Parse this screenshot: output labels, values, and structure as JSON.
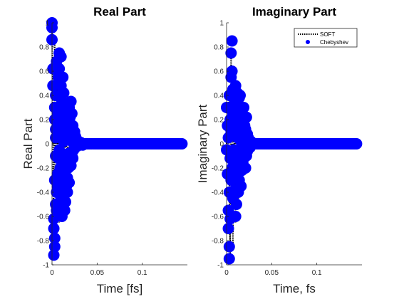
{
  "chart_data": [
    {
      "type": "scatter",
      "title": "Real Part",
      "xlabel": "Time [fs]",
      "ylabel": "Real Part",
      "xlim": [
        0,
        0.15
      ],
      "ylim": [
        -1,
        1
      ],
      "xticks": [
        0,
        0.05,
        0.1
      ],
      "yticks": [
        -1,
        -0.8,
        -0.6,
        -0.4,
        -0.2,
        0,
        0.2,
        0.4,
        0.6,
        0.8,
        1
      ],
      "xtick_labels": [
        "0",
        "0.05",
        "0.1"
      ],
      "ytick_labels": [
        "-1",
        "-0.8",
        "-0.6",
        "-0.4",
        "-0.2",
        "0",
        "0.2",
        "0.4",
        "0.6",
        "0.8",
        "1"
      ],
      "grid": false,
      "series": [
        {
          "name": "SOFT",
          "style": "dotted-line",
          "color": "#000000",
          "x": [
            0,
            0.002,
            0.003,
            0.005,
            0.006,
            0.008,
            0.009,
            0.011,
            0.012,
            0.014,
            0.015,
            0.017,
            0.018,
            0.02,
            0.022,
            0.024,
            0.026,
            0.028,
            0.03,
            0.035,
            0.04,
            0.05,
            0.07,
            0.1,
            0.145
          ],
          "y": [
            1,
            -0.93,
            0.85,
            -0.88,
            0.55,
            -0.65,
            0.75,
            -0.5,
            0.45,
            -0.45,
            0.3,
            -0.3,
            0.3,
            -0.15,
            0.2,
            -0.08,
            0.08,
            -0.03,
            0.02,
            0,
            0,
            0,
            0,
            0,
            0
          ]
        },
        {
          "name": "Chebyshev",
          "style": "marker",
          "color": "#0000FF",
          "x": [
            0,
            0,
            0,
            0.001,
            0.001,
            0.002,
            0.002,
            0.002,
            0.003,
            0.003,
            0.003,
            0.003,
            0.003,
            0.004,
            0.004,
            0.004,
            0.004,
            0.004,
            0.005,
            0.005,
            0.005,
            0.006,
            0.006,
            0.006,
            0.006,
            0.007,
            0.007,
            0.007,
            0.008,
            0.008,
            0.008,
            0.008,
            0.009,
            0.009,
            0.01,
            0.01,
            0.01,
            0.01,
            0.011,
            0.011,
            0.012,
            0.012,
            0.012,
            0.012,
            0.013,
            0.013,
            0.013,
            0.013,
            0.013,
            0.014,
            0.014,
            0.014,
            0.014,
            0.015,
            0.015,
            0.015,
            0.015,
            0.015,
            0.016,
            0.016,
            0.016,
            0.016,
            0.017,
            0.017,
            0.017,
            0.017,
            0.018,
            0.018,
            0.018,
            0.018,
            0.019,
            0.019,
            0.019,
            0.019,
            0.02,
            0.02,
            0.02,
            0.021,
            0.021,
            0.021,
            0.022,
            0.022,
            0.022,
            0.023,
            0.023,
            0.024,
            0.024,
            0.025,
            0.025,
            0.026,
            0.026,
            0.027,
            0.028,
            0.029,
            0.03,
            0.032,
            0.034,
            0.036,
            0.038,
            0.04,
            0.042,
            0.044,
            0.046,
            0.048,
            0.05,
            0.052,
            0.054,
            0.056,
            0.058,
            0.06,
            0.062,
            0.064,
            0.066,
            0.068,
            0.07,
            0.072,
            0.074,
            0.076,
            0.078,
            0.08,
            0.082,
            0.084,
            0.086,
            0.088,
            0.09,
            0.092,
            0.094,
            0.096,
            0.098,
            0.1,
            0.102,
            0.104,
            0.106,
            0.108,
            0.11,
            0.112,
            0.114,
            0.116,
            0.118,
            0.12,
            0.122,
            0.124,
            0.126,
            0.128,
            0.13,
            0.132,
            0.134,
            0.136,
            0.138,
            0.14,
            0.142,
            0.144
          ],
          "y": [
            1,
            0.96,
            0.86,
            0.62,
            0.48,
            -0.62,
            -0.7,
            -0.92,
            0.3,
            0.2,
            -0.78,
            -0.85,
            -0.3,
            0.05,
            0.4,
            -0.5,
            -0.1,
            0.12,
            0.68,
            -0.4,
            -0.55,
            0.25,
            0.1,
            -0.25,
            -0.35,
            0.55,
            0.15,
            -0.12,
            0.75,
            0.62,
            -0.05,
            0.3,
            0.2,
            -0.2,
            0.72,
            0.48,
            -0.45,
            0.05,
            0.35,
            -0.6,
            0.55,
            0.25,
            -0.5,
            -0.15,
            0.42,
            0.18,
            0.02,
            -0.3,
            -0.45,
            0.1,
            -0.55,
            0.3,
            -0.38,
            0.22,
            0.05,
            -0.22,
            -0.48,
            0.15,
            -0.35,
            0.28,
            0.08,
            -0.1,
            -0.4,
            -0.28,
            0.32,
            0.12,
            0.05,
            -0.2,
            0.22,
            -0.08,
            0.3,
            -0.32,
            0.18,
            0.06,
            0.22,
            -0.15,
            0.03,
            0.35,
            0.12,
            -0.18,
            0.25,
            0.02,
            -0.1,
            0.15,
            -0.12,
            0.08,
            -0.05,
            0.1,
            -0.03,
            0.06,
            0.02,
            0.04,
            -0.02,
            0.02,
            0,
            0.01,
            -0.01,
            0,
            0,
            0,
            0,
            0,
            0,
            0,
            0,
            0,
            0,
            0,
            0,
            0,
            0,
            0,
            0,
            0,
            0,
            0,
            0,
            0,
            0,
            0,
            0,
            0,
            0,
            0,
            0,
            0,
            0,
            0,
            0,
            0,
            0,
            0,
            0,
            0,
            0,
            0,
            0,
            0,
            0,
            0,
            0,
            0,
            0,
            0,
            0,
            0,
            0,
            0,
            0,
            0,
            0,
            0
          ]
        }
      ]
    },
    {
      "type": "scatter",
      "title": "Imaginary Part",
      "xlabel": "Time, fs",
      "ylabel": "Imaginary Part",
      "xlim": [
        0,
        0.15
      ],
      "ylim": [
        -1,
        1
      ],
      "xticks": [
        0,
        0.05,
        0.1
      ],
      "yticks": [
        -1,
        -0.8,
        -0.6,
        -0.4,
        -0.2,
        0,
        0.2,
        0.4,
        0.6,
        0.8,
        1
      ],
      "xtick_labels": [
        "0",
        "0.05",
        "0.1"
      ],
      "ytick_labels": [
        "-1",
        "-0.8",
        "-0.6",
        "-0.4",
        "-0.2",
        "0",
        "0.2",
        "0.4",
        "0.6",
        "0.8",
        "1"
      ],
      "grid": false,
      "legend": {
        "position": "top-right",
        "entries": [
          "SOFT",
          "Chebyshev"
        ]
      },
      "series": [
        {
          "name": "SOFT",
          "style": "dotted-line",
          "color": "#000000",
          "x": [
            0,
            0.002,
            0.004,
            0.005,
            0.007,
            0.008,
            0.01,
            0.011,
            0.013,
            0.014,
            0.016,
            0.017,
            0.019,
            0.021,
            0.023,
            0.025,
            0.027,
            0.03,
            0.035,
            0.05,
            0.1,
            0.145
          ],
          "y": [
            0,
            0.35,
            -0.95,
            0.8,
            -0.85,
            0.6,
            -0.65,
            0.45,
            -0.5,
            0.35,
            -0.35,
            0.28,
            -0.2,
            0.18,
            -0.1,
            0.08,
            -0.02,
            0.02,
            0,
            0,
            0,
            0
          ]
        },
        {
          "name": "Chebyshev",
          "style": "marker",
          "color": "#0000FF",
          "x": [
            0,
            0,
            0.001,
            0.001,
            0.002,
            0.002,
            0.002,
            0.003,
            0.003,
            0.003,
            0.003,
            0.004,
            0.004,
            0.004,
            0.005,
            0.005,
            0.005,
            0.005,
            0.006,
            0.006,
            0.006,
            0.007,
            0.007,
            0.007,
            0.008,
            0.008,
            0.008,
            0.008,
            0.009,
            0.009,
            0.009,
            0.01,
            0.01,
            0.01,
            0.011,
            0.011,
            0.011,
            0.012,
            0.012,
            0.012,
            0.013,
            0.013,
            0.013,
            0.014,
            0.014,
            0.014,
            0.015,
            0.015,
            0.015,
            0.016,
            0.016,
            0.016,
            0.017,
            0.017,
            0.017,
            0.018,
            0.018,
            0.018,
            0.019,
            0.019,
            0.02,
            0.02,
            0.021,
            0.021,
            0.022,
            0.022,
            0.023,
            0.023,
            0.024,
            0.025,
            0.026,
            0.027,
            0.028,
            0.029,
            0.03,
            0.032,
            0.034,
            0.036,
            0.038,
            0.04,
            0.042,
            0.044,
            0.046,
            0.048,
            0.05,
            0.052,
            0.054,
            0.056,
            0.058,
            0.06,
            0.062,
            0.064,
            0.066,
            0.068,
            0.07,
            0.072,
            0.074,
            0.076,
            0.078,
            0.08,
            0.082,
            0.084,
            0.086,
            0.088,
            0.09,
            0.092,
            0.094,
            0.096,
            0.098,
            0.1,
            0.102,
            0.104,
            0.106,
            0.108,
            0.11,
            0.112,
            0.114,
            0.116,
            0.118,
            0.12,
            0.122,
            0.124,
            0.126,
            0.128,
            0.13,
            0.132,
            0.134,
            0.136,
            0.138,
            0.14,
            0.142,
            0.144
          ],
          "y": [
            0.3,
            -0.05,
            -0.25,
            0.15,
            -0.55,
            -0.7,
            0.05,
            -0.85,
            -0.95,
            -0.4,
            0.4,
            -0.62,
            0.2,
            -0.12,
            0.75,
            0.55,
            -0.3,
            0.1,
            0.85,
            0.6,
            -0.2,
            0.45,
            0.25,
            -0.45,
            0.3,
            0.12,
            -0.05,
            -0.25,
            -0.1,
            0.35,
            -0.38,
            -0.6,
            0.48,
            0.15,
            -0.5,
            0.22,
            -0.15,
            0.42,
            -0.28,
            0.05,
            0.3,
            -0.4,
            0.12,
            -0.05,
            0.38,
            -0.3,
            0.4,
            -0.18,
            0.1,
            -0.35,
            0.25,
            0.02,
            -0.22,
            0.28,
            0.08,
            0.2,
            -0.15,
            0.05,
            0.3,
            -0.08,
            0.15,
            -0.05,
            -0.2,
            0.12,
            0.22,
            -0.1,
            0.08,
            -0.06,
            0.05,
            0.02,
            -0.03,
            0.02,
            0.01,
            0,
            0,
            0,
            0,
            0,
            0,
            0,
            0,
            0,
            0,
            0,
            0,
            0,
            0,
            0,
            0,
            0,
            0,
            0,
            0,
            0,
            0,
            0,
            0,
            0,
            0,
            0,
            0,
            0,
            0,
            0,
            0,
            0,
            0,
            0,
            0,
            0,
            0,
            0,
            0,
            0,
            0,
            0,
            0,
            0,
            0,
            0,
            0,
            0,
            0,
            0,
            0,
            0,
            0,
            0,
            0,
            0,
            0,
            0
          ]
        }
      ]
    }
  ]
}
